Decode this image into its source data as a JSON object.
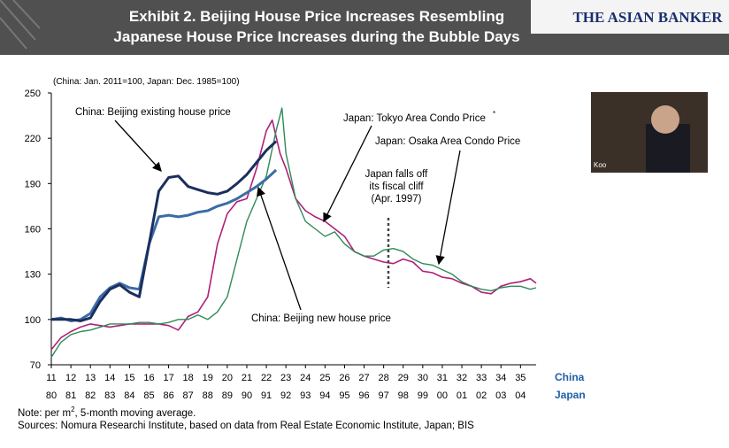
{
  "header": {
    "title_lines": [
      "Exhibit 2. Beijing House Price Increases Resembling",
      "Japanese House Price Increases during the Bubble Days"
    ],
    "logo": "THE ASIAN BANKER"
  },
  "video_label": "Koo",
  "chart_data": {
    "type": "line",
    "subtitle": "(China: Jan. 2011=100, Japan: Dec. 1985=100)",
    "xlim": [
      11,
      35.8
    ],
    "xticks": [
      11,
      12,
      13,
      14,
      15,
      16,
      17,
      18,
      19,
      20,
      21,
      22,
      23,
      24,
      25,
      26,
      27,
      28,
      29,
      30,
      31,
      32,
      33,
      34,
      35
    ],
    "x_axis_label": "China",
    "x2_axis_label": "Japan",
    "x2ticks": [
      {
        "value": 11,
        "label": "80"
      },
      {
        "value": 12,
        "label": "81"
      },
      {
        "value": 13,
        "label": "82"
      },
      {
        "value": 14,
        "label": "83"
      },
      {
        "value": 15,
        "label": "84"
      },
      {
        "value": 16,
        "label": "85"
      },
      {
        "value": 17,
        "label": "86"
      },
      {
        "value": 18,
        "label": "87"
      },
      {
        "value": 19,
        "label": "88"
      },
      {
        "value": 20,
        "label": "89"
      },
      {
        "value": 21,
        "label": "90"
      },
      {
        "value": 22,
        "label": "91"
      },
      {
        "value": 23,
        "label": "92"
      },
      {
        "value": 24,
        "label": "93"
      },
      {
        "value": 25,
        "label": "94"
      },
      {
        "value": 26,
        "label": "95"
      },
      {
        "value": 27,
        "label": "96"
      },
      {
        "value": 28,
        "label": "97"
      },
      {
        "value": 29,
        "label": "98"
      },
      {
        "value": 30,
        "label": "99"
      },
      {
        "value": 31,
        "label": "00"
      },
      {
        "value": 32,
        "label": "01"
      },
      {
        "value": 33,
        "label": "02"
      },
      {
        "value": 34,
        "label": "03"
      },
      {
        "value": 35,
        "label": "04"
      }
    ],
    "ylim": [
      70,
      250
    ],
    "yticks": [
      70,
      100,
      130,
      160,
      190,
      220,
      250
    ],
    "series": [
      {
        "name": "China: Beijing existing house price",
        "color": "#1b2f5e",
        "width": 3,
        "x": [
          11,
          11.5,
          12,
          12.5,
          13,
          13.5,
          14,
          14.5,
          15,
          15.5,
          16,
          16.5,
          17,
          17.5,
          18,
          18.5,
          19,
          19.5,
          20,
          20.5,
          21,
          21.5,
          22,
          22.5
        ],
        "values": [
          100,
          100,
          100,
          99,
          101,
          112,
          120,
          123,
          118,
          115,
          150,
          185,
          194,
          195,
          188,
          186,
          184,
          183,
          185,
          190,
          196,
          204,
          212,
          218
        ]
      },
      {
        "name": "China: Beijing new house price",
        "color": "#3c6ca6",
        "width": 3,
        "x": [
          11,
          11.5,
          12,
          12.5,
          13,
          13.5,
          14,
          14.5,
          15,
          15.5,
          16,
          16.5,
          17,
          17.5,
          18,
          18.5,
          19,
          19.5,
          20,
          20.5,
          21,
          21.5,
          22,
          22.5
        ],
        "values": [
          100,
          101,
          99,
          100,
          104,
          115,
          121,
          124,
          121,
          120,
          150,
          168,
          169,
          168,
          169,
          171,
          172,
          175,
          177,
          180,
          184,
          188,
          193,
          199
        ]
      },
      {
        "name": "Japan: Tokyo Area Condo Price",
        "color": "#b0207a",
        "width": 1.6,
        "x": [
          11,
          11.5,
          12,
          12.5,
          13,
          13.5,
          14,
          14.5,
          15,
          15.5,
          16,
          16.5,
          17,
          17.5,
          18,
          18.5,
          19,
          19.5,
          20,
          20.5,
          21,
          21.5,
          22,
          22.3,
          22.7,
          23,
          23.5,
          24,
          24.5,
          25,
          25.5,
          26,
          26.5,
          27,
          27.5,
          28,
          28.5,
          29,
          29.5,
          30,
          30.5,
          31,
          31.5,
          32,
          32.5,
          33,
          33.5,
          34,
          34.5,
          35,
          35.5,
          35.8
        ],
        "values": [
          80,
          88,
          92,
          95,
          97,
          96,
          95,
          96,
          97,
          97,
          97,
          97,
          96,
          93,
          102,
          105,
          115,
          150,
          170,
          178,
          180,
          200,
          225,
          232,
          210,
          200,
          180,
          172,
          168,
          165,
          160,
          155,
          145,
          142,
          140,
          138,
          137,
          140,
          138,
          132,
          131,
          128,
          127,
          124,
          122,
          118,
          117,
          122,
          124,
          125,
          127,
          124
        ]
      },
      {
        "name": "Japan: Osaka Area Condo Price",
        "color": "#2e8b57",
        "width": 1.4,
        "x": [
          11,
          11.5,
          12,
          12.5,
          13,
          13.5,
          14,
          14.5,
          15,
          15.5,
          16,
          16.5,
          17,
          17.5,
          18,
          18.5,
          19,
          19.5,
          20,
          20.5,
          21,
          21.5,
          22,
          22.5,
          22.8,
          23,
          23.5,
          24,
          24.5,
          25,
          25.5,
          26,
          26.5,
          27,
          27.5,
          28,
          28.5,
          29,
          29.5,
          30,
          30.5,
          31,
          31.5,
          32,
          32.5,
          33,
          33.5,
          34,
          34.5,
          35,
          35.5,
          35.8
        ],
        "values": [
          75,
          85,
          90,
          92,
          93,
          95,
          97,
          97,
          97,
          98,
          98,
          97,
          98,
          100,
          100,
          103,
          100,
          105,
          115,
          140,
          165,
          180,
          195,
          225,
          240,
          210,
          180,
          165,
          160,
          155,
          158,
          150,
          145,
          142,
          142,
          146,
          147,
          145,
          140,
          137,
          136,
          133,
          130,
          125,
          122,
          120,
          119,
          121,
          122,
          122,
          120,
          121
        ]
      }
    ],
    "annotations": [
      "Japan falls off",
      "its fiscal cliff",
      "(Apr. 1997)",
      "*"
    ]
  },
  "notes": {
    "note_parts": [
      "Note: per m",
      "2",
      ", 5-month moving average."
    ],
    "sources": "Sources: Nomura Researchi Institute, based on data from Real Estate Economic Institute, Japan; BIS"
  }
}
